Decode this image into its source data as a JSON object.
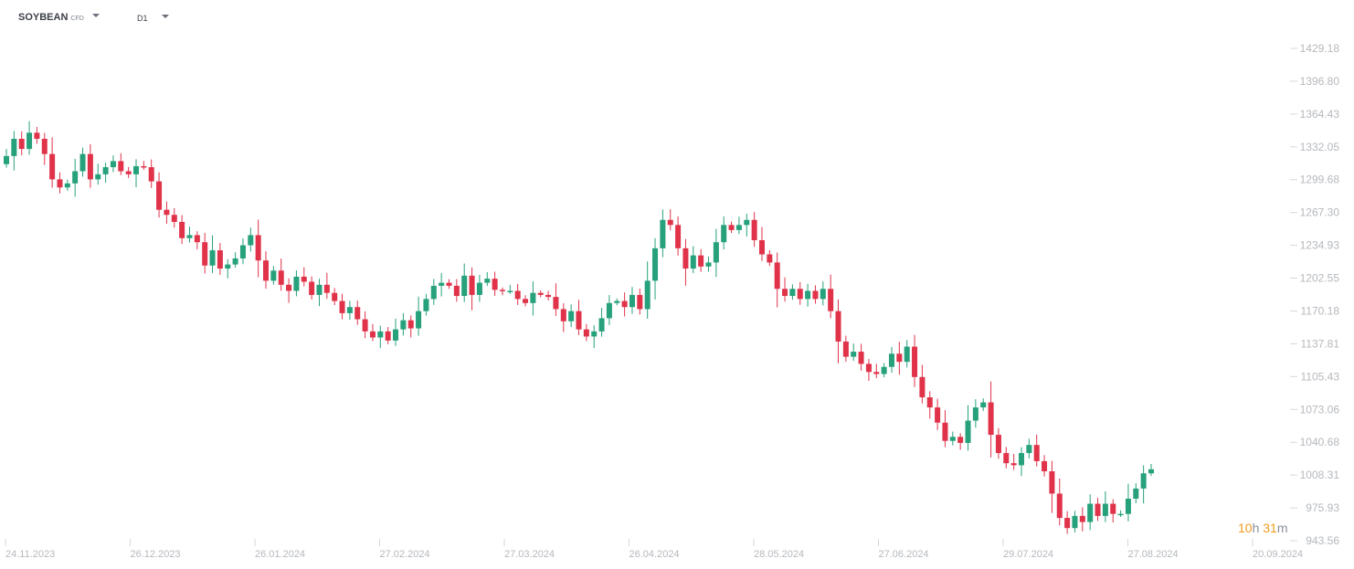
{
  "header": {
    "symbol": "SOYBEAN",
    "symbol_type": "CFD",
    "timeframe": "D1"
  },
  "countdown": {
    "hours": "10",
    "hours_unit": "h",
    "minutes": "31",
    "minutes_unit": "m"
  },
  "colors": {
    "up": "#26a17b",
    "down": "#e0334a",
    "axis_text": "#b5b8bd"
  },
  "chart_data": {
    "type": "candlestick",
    "title": "",
    "xlabel": "",
    "ylabel": "",
    "y_ticks": [
      "1429.18",
      "1396.80",
      "1364.43",
      "1332.05",
      "1299.68",
      "1267.30",
      "1234.93",
      "1202.55",
      "1170.18",
      "1137.81",
      "1105.43",
      "1073.06",
      "1040.68",
      "1008.31",
      "975.93",
      "943.56"
    ],
    "ylim": [
      943.56,
      1429.18
    ],
    "x_ticks": [
      "24.11.2023",
      "26.12.2023",
      "26.01.2024",
      "27.02.2024",
      "27.03.2024",
      "26.04.2024",
      "28.05.2024",
      "27.06.2024",
      "29.07.2024",
      "27.08.2024",
      "20.09.2024"
    ],
    "grid": false,
    "approx_closes": [
      1323,
      1340,
      1330,
      1346,
      1340,
      1325,
      1300,
      1292,
      1296,
      1308,
      1325,
      1300,
      1305,
      1312,
      1318,
      1308,
      1305,
      1313,
      1312,
      1298,
      1270,
      1265,
      1258,
      1242,
      1245,
      1238,
      1215,
      1230,
      1212,
      1216,
      1222,
      1235,
      1245,
      1220,
      1200,
      1210,
      1196,
      1190,
      1204,
      1199,
      1186,
      1196,
      1188,
      1180,
      1168,
      1174,
      1162,
      1150,
      1144,
      1150,
      1141,
      1152,
      1161,
      1153,
      1170,
      1182,
      1195,
      1198,
      1195,
      1185,
      1205,
      1186,
      1198,
      1202,
      1191,
      1190,
      1190,
      1182,
      1178,
      1188,
      1186,
      1184,
      1172,
      1160,
      1170,
      1152,
      1145,
      1150,
      1163,
      1178,
      1180,
      1174,
      1186,
      1172,
      1200,
      1232,
      1260,
      1255,
      1232,
      1212,
      1225,
      1214,
      1218,
      1238,
      1255,
      1250,
      1255,
      1260,
      1240,
      1226,
      1218,
      1192,
      1185,
      1192,
      1182,
      1190,
      1182,
      1192,
      1170,
      1140,
      1125,
      1130,
      1118,
      1110,
      1108,
      1115,
      1128,
      1120,
      1135,
      1105,
      1085,
      1075,
      1060,
      1042,
      1046,
      1040,
      1062,
      1075,
      1080,
      1048,
      1030,
      1020,
      1018,
      1030,
      1038,
      1022,
      1012,
      990,
      966,
      956,
      968,
      962,
      980,
      968,
      980,
      970,
      970,
      985,
      995,
      1010,
      1014
    ]
  }
}
